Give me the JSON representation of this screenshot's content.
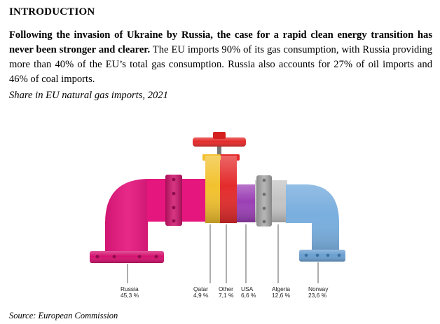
{
  "heading": "INTRODUCTION",
  "paragraph": {
    "bold": "Following the invasion of Ukraine by Russia, the case for a rapid clean energy transition has never been stronger and clearer.",
    "rest": " The EU imports 90% of its gas consumption, with Russia providing more than 40% of the EU’s total gas consumption. Russia also accounts for 27% of oil imports and 46% of coal imports."
  },
  "caption": "Share in EU natural gas imports, 2021",
  "source": "Source: European Commission",
  "chart_data": {
    "type": "bar",
    "categories": [
      "Russia",
      "Qatar",
      "Other",
      "USA",
      "Algeria",
      "Norway"
    ],
    "values": [
      45.3,
      4.9,
      7.1,
      6.6,
      12.6,
      23.6
    ],
    "value_labels": [
      "45,3 %",
      "4,9 %",
      "7,1 %",
      "6,6 %",
      "12,6 %",
      "23,6 %"
    ],
    "title": "Share in EU natural gas imports, 2021",
    "colors": {
      "Russia": "#e5177e",
      "Qatar": "#f2c12e",
      "Other": "#e42b2b",
      "USA": "#9b3fb5",
      "Algeria": "#b8b8b8",
      "Norway": "#79aede",
      "valve": "#e42b2b"
    }
  }
}
